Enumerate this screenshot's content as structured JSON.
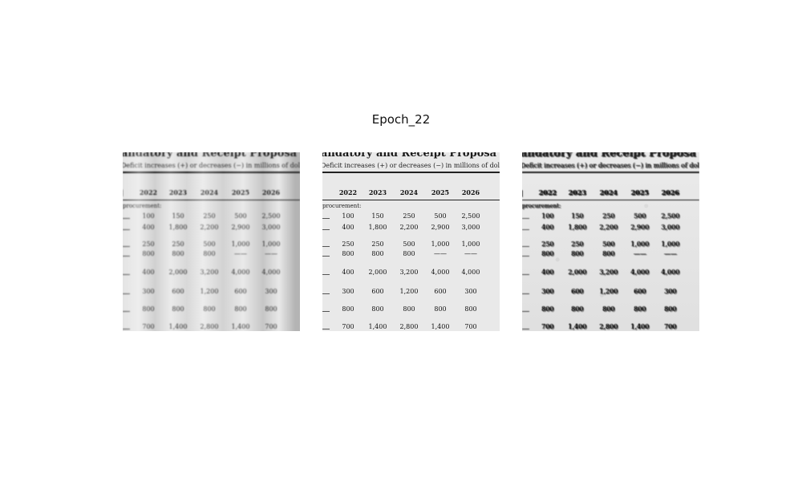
{
  "figure": {
    "title": "Epoch_22"
  },
  "document": {
    "heading": "andatory and Receipt Proposa",
    "subheading": "Deficit increases (+) or decreases (−) in millions of dolla",
    "section_label": "procurement:",
    "years": [
      "2022",
      "2023",
      "2024",
      "2025",
      "2026"
    ],
    "rows": [
      [
        "100",
        "150",
        "250",
        "500",
        "2,500"
      ],
      [
        "400",
        "1,800",
        "2,200",
        "2,900",
        "3,000"
      ],
      [
        "250",
        "250",
        "500",
        "1,000",
        "1,000"
      ],
      [
        "800",
        "800",
        "800",
        "——",
        "——"
      ],
      [
        "400",
        "2,000",
        "3,200",
        "4,000",
        "4,000"
      ],
      [
        "300",
        "600",
        "1,200",
        "600",
        "300"
      ],
      [
        "800",
        "800",
        "800",
        "800",
        "800"
      ],
      [
        "700",
        "1,400",
        "2,800",
        "1,400",
        "700"
      ]
    ]
  },
  "panels": [
    {
      "label": "degraded-input",
      "variant": "blur-soft"
    },
    {
      "label": "clean-target",
      "variant": "clean"
    },
    {
      "label": "reconstruction",
      "variant": "ghost"
    }
  ]
}
